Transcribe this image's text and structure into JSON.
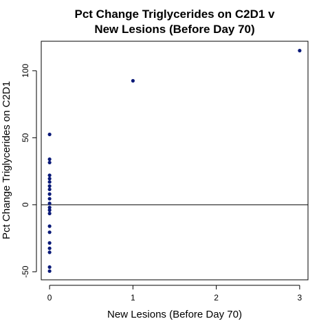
{
  "chart_data": {
    "type": "scatter",
    "title_lines": [
      "Pct Change Triglycerides on C2D1 v",
      "New Lesions (Before Day 70)"
    ],
    "xlabel": "New Lesions (Before Day 70)",
    "ylabel": "Pct Change Triglycerides on C2D1",
    "xlim": [
      -0.1,
      3.1
    ],
    "ylim": [
      -56,
      122
    ],
    "x_ticks": [
      0,
      1,
      2,
      3
    ],
    "x_tick_labels": [
      "0",
      "1",
      "2",
      "3"
    ],
    "y_ticks": [
      -50,
      0,
      50,
      100
    ],
    "y_tick_labels": [
      "-50",
      "0",
      "50",
      "100"
    ],
    "reference_line_y": 0,
    "grid": false,
    "point_color": "#0a1a78",
    "series": [
      {
        "points": [
          {
            "x": 0,
            "y": 52.5
          },
          {
            "x": 0,
            "y": 34.0
          },
          {
            "x": 0,
            "y": 31.5
          },
          {
            "x": 0,
            "y": 22.0
          },
          {
            "x": 0,
            "y": 19.5
          },
          {
            "x": 0,
            "y": 17.0
          },
          {
            "x": 0,
            "y": 14.0
          },
          {
            "x": 0,
            "y": 11.5
          },
          {
            "x": 0,
            "y": 8.0
          },
          {
            "x": 0,
            "y": 4.5
          },
          {
            "x": 0,
            "y": 1.0
          },
          {
            "x": 0,
            "y": -2.0
          },
          {
            "x": 0,
            "y": -4.0
          },
          {
            "x": 0,
            "y": -6.5
          },
          {
            "x": 0,
            "y": -16.0
          },
          {
            "x": 0,
            "y": -20.5
          },
          {
            "x": 0,
            "y": -28.5
          },
          {
            "x": 0,
            "y": -32.5
          },
          {
            "x": 0,
            "y": -35.5
          },
          {
            "x": 0,
            "y": -46.5
          },
          {
            "x": 0,
            "y": -49.5
          },
          {
            "x": 1,
            "y": 92.5
          },
          {
            "x": 3,
            "y": 115.0
          }
        ]
      }
    ]
  }
}
